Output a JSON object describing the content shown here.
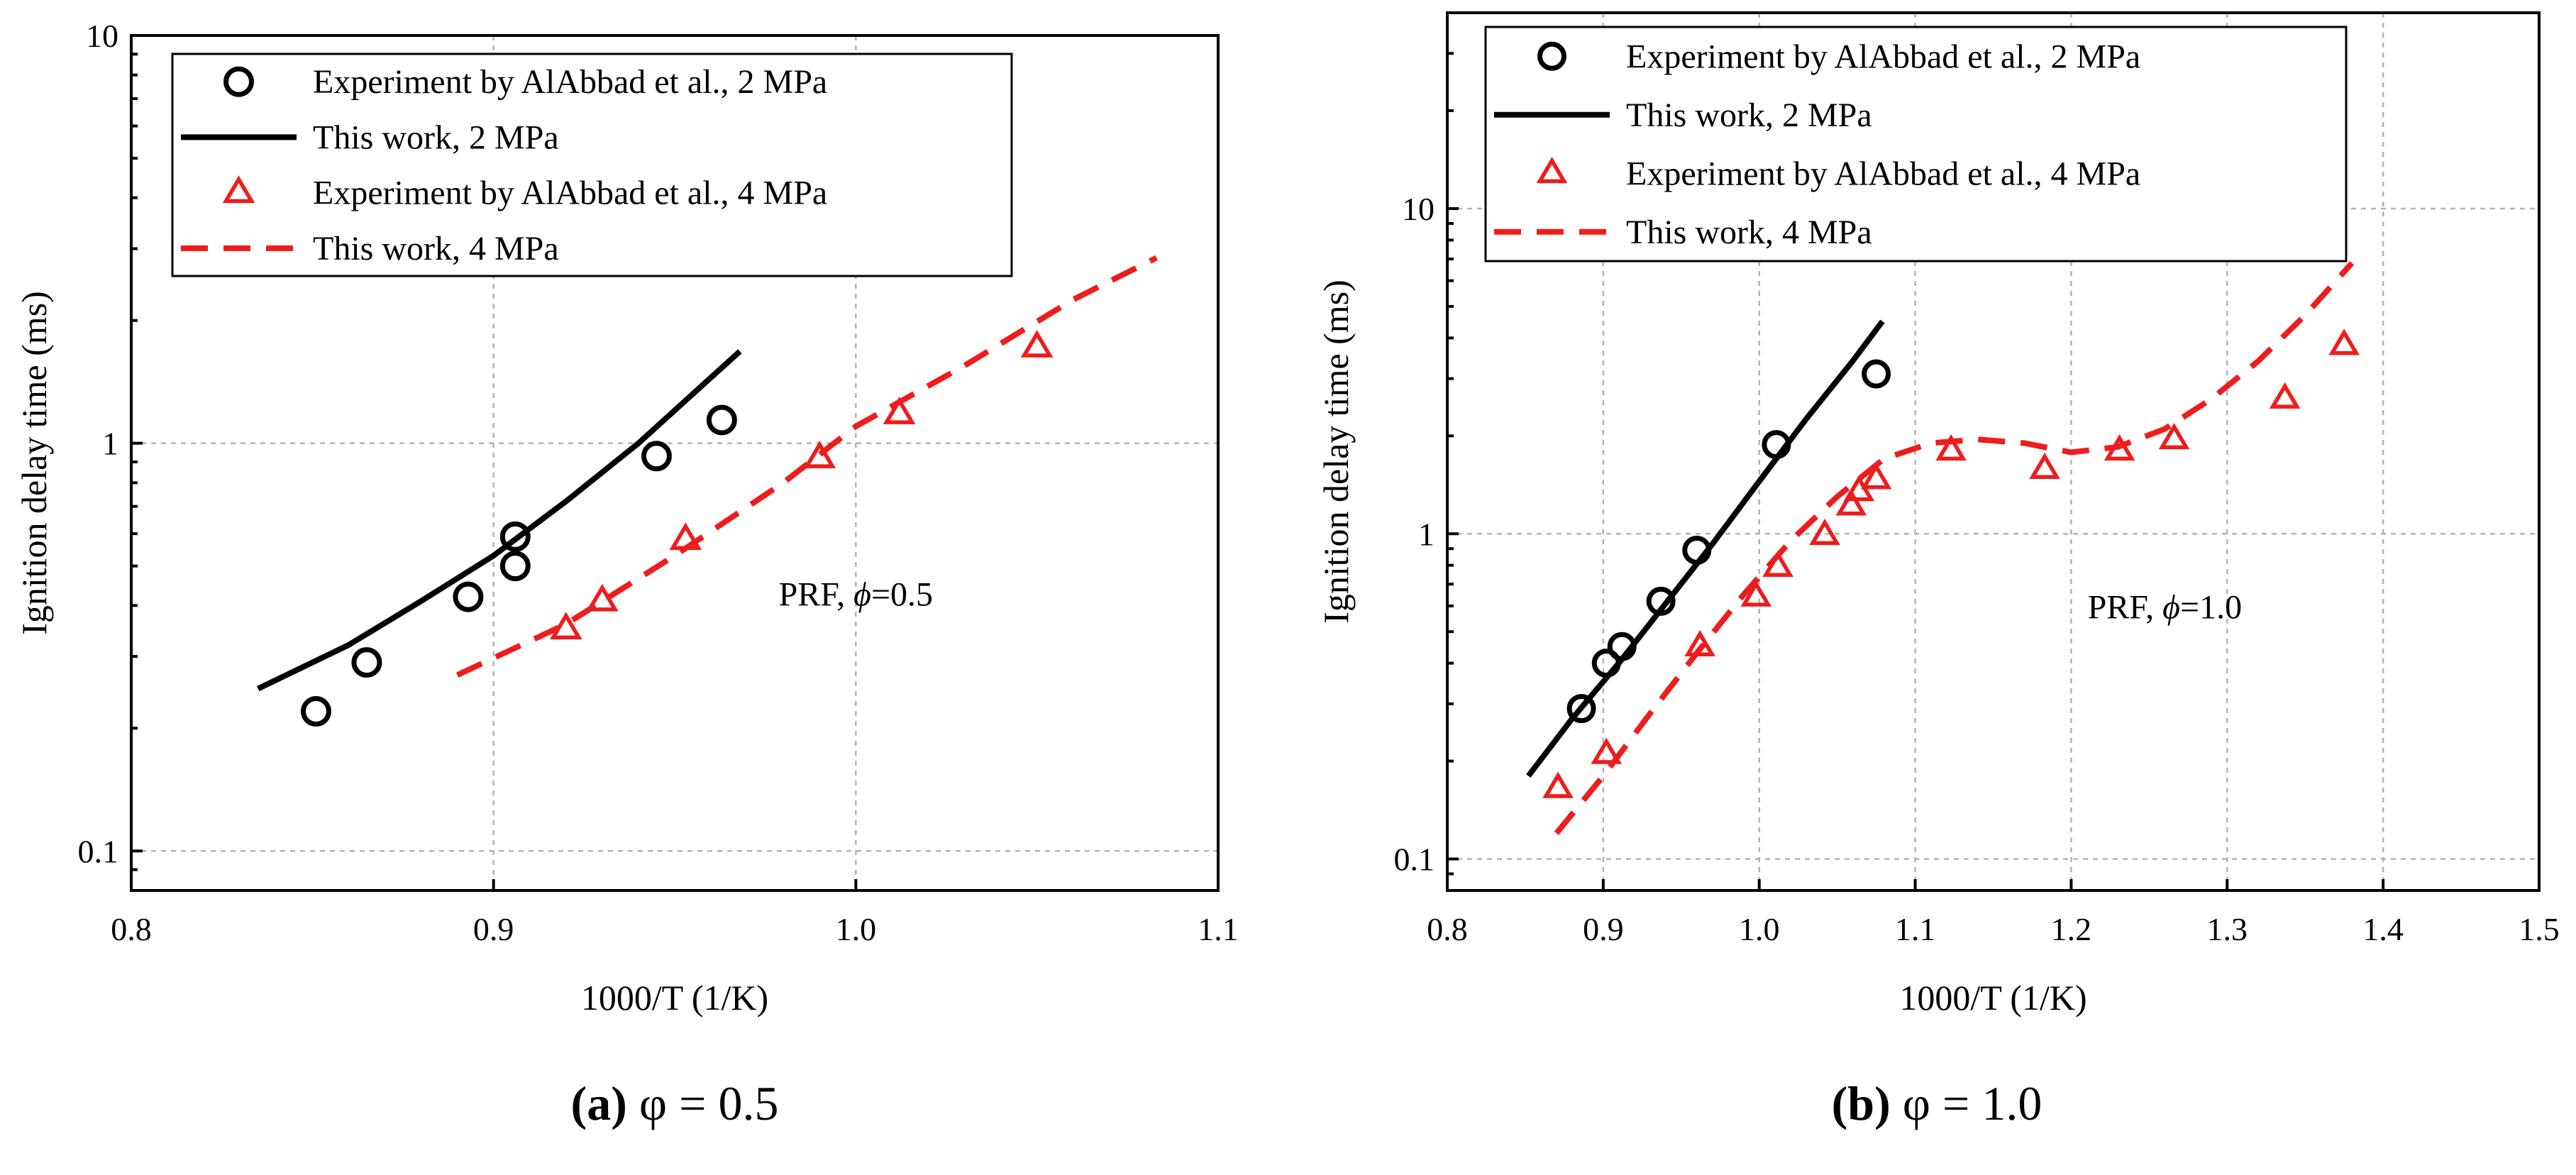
{
  "chart_data": [
    {
      "type": "scatter",
      "panel": "a",
      "caption": {
        "letter": "(a)",
        "text": "φ = 0.5"
      },
      "xlabel": "1000/T (1/K)",
      "ylabel": "Ignition delay time (ms)",
      "xlim": [
        0.8,
        1.1
      ],
      "ylim": [
        0.08,
        10
      ],
      "yscale": "log",
      "grid": true,
      "legend_position": "top-left",
      "xticks": [
        0.8,
        0.9,
        1.0,
        1.1
      ],
      "xtick_labels": [
        "0.8",
        "0.9",
        "1.0",
        "1.1"
      ],
      "yticks": [
        0.1,
        1,
        10
      ],
      "ytick_labels": [
        "0.1",
        "1",
        "10"
      ],
      "annotation": {
        "prefix": "PRF, ",
        "symbol": "ϕ",
        "value": "=0.5",
        "x": 1.0,
        "y": 0.4
      },
      "series": [
        {
          "name": "Experiment by AlAbbad et al., 2 MPa",
          "kind": "circle",
          "color": "#000000",
          "x": [
            0.851,
            0.865,
            0.893,
            0.906,
            0.906,
            0.945,
            0.963
          ],
          "y": [
            0.22,
            0.29,
            0.42,
            0.5,
            0.59,
            0.93,
            1.14
          ]
        },
        {
          "name": "This work, 2 MPa",
          "kind": "solid",
          "color": "#000000",
          "x": [
            0.835,
            0.86,
            0.88,
            0.9,
            0.92,
            0.94,
            0.968
          ],
          "y": [
            0.25,
            0.32,
            0.41,
            0.53,
            0.72,
            1.0,
            1.68
          ]
        },
        {
          "name": "Experiment by AlAbbad et al., 4 MPa",
          "kind": "triangle",
          "color": "#ee1c1c",
          "x": [
            0.92,
            0.93,
            0.953,
            0.99,
            1.012,
            1.05
          ],
          "y": [
            0.35,
            0.41,
            0.58,
            0.92,
            1.18,
            1.72
          ]
        },
        {
          "name": "This work, 4 MPa",
          "kind": "dashed",
          "color": "#ee1c1c",
          "x": [
            0.89,
            0.92,
            0.95,
            0.98,
            1.0,
            1.03,
            1.06,
            1.083
          ],
          "y": [
            0.27,
            0.36,
            0.53,
            0.8,
            1.1,
            1.55,
            2.25,
            2.85
          ]
        }
      ]
    },
    {
      "type": "scatter",
      "panel": "b",
      "caption": {
        "letter": "(b)",
        "text": "φ = 1.0"
      },
      "xlabel": "1000/T (1/K)",
      "ylabel": "Ignition delay time (ms)",
      "xlim": [
        0.8,
        1.5
      ],
      "ylim": [
        0.08,
        40
      ],
      "yscale": "log",
      "grid": true,
      "legend_position": "top-left",
      "xticks": [
        0.8,
        0.9,
        1.0,
        1.1,
        1.2,
        1.3,
        1.4,
        1.5
      ],
      "xtick_labels": [
        "0.8",
        "0.9",
        "1.0",
        "1.1",
        "1.2",
        "1.3",
        "1.4",
        "1.5"
      ],
      "yticks": [
        0.1,
        1,
        10
      ],
      "ytick_labels": [
        "0.1",
        "1",
        "10"
      ],
      "annotation": {
        "prefix": "PRF, ",
        "symbol": "ϕ",
        "value": "=1.0",
        "x": 1.26,
        "y": 0.55
      },
      "series": [
        {
          "name": "Experiment by AlAbbad et al., 2 MPa",
          "kind": "circle",
          "color": "#000000",
          "x": [
            0.886,
            0.902,
            0.912,
            0.937,
            0.96,
            1.011,
            1.075
          ],
          "y": [
            0.29,
            0.4,
            0.45,
            0.62,
            0.89,
            1.88,
            3.1
          ]
        },
        {
          "name": "This work, 2 MPa",
          "kind": "solid",
          "color": "#000000",
          "x": [
            0.852,
            0.88,
            0.91,
            0.94,
            0.97,
            1.0,
            1.03,
            1.06,
            1.079
          ],
          "y": [
            0.18,
            0.27,
            0.4,
            0.61,
            0.93,
            1.45,
            2.25,
            3.4,
            4.5
          ]
        },
        {
          "name": "Experiment by AlAbbad et al., 4 MPa",
          "kind": "triangle",
          "color": "#ee1c1c",
          "x": [
            0.871,
            0.902,
            0.962,
            0.998,
            1.012,
            1.042,
            1.059,
            1.064,
            1.075,
            1.123,
            1.183,
            1.231,
            1.266,
            1.337,
            1.375
          ],
          "y": [
            0.165,
            0.21,
            0.45,
            0.64,
            0.79,
            0.99,
            1.22,
            1.35,
            1.47,
            1.8,
            1.58,
            1.8,
            1.95,
            2.6,
            3.8
          ]
        },
        {
          "name": "This work, 4 MPa",
          "kind": "dashed",
          "color": "#ee1c1c",
          "x": [
            0.87,
            0.9,
            0.93,
            0.96,
            0.99,
            1.02,
            1.05,
            1.08,
            1.11,
            1.14,
            1.17,
            1.2,
            1.23,
            1.26,
            1.29,
            1.32,
            1.35,
            1.38
          ],
          "y": [
            0.12,
            0.18,
            0.28,
            0.43,
            0.65,
            0.95,
            1.3,
            1.7,
            1.9,
            1.95,
            1.9,
            1.78,
            1.85,
            2.1,
            2.6,
            3.4,
            4.7,
            6.8
          ]
        }
      ]
    }
  ]
}
